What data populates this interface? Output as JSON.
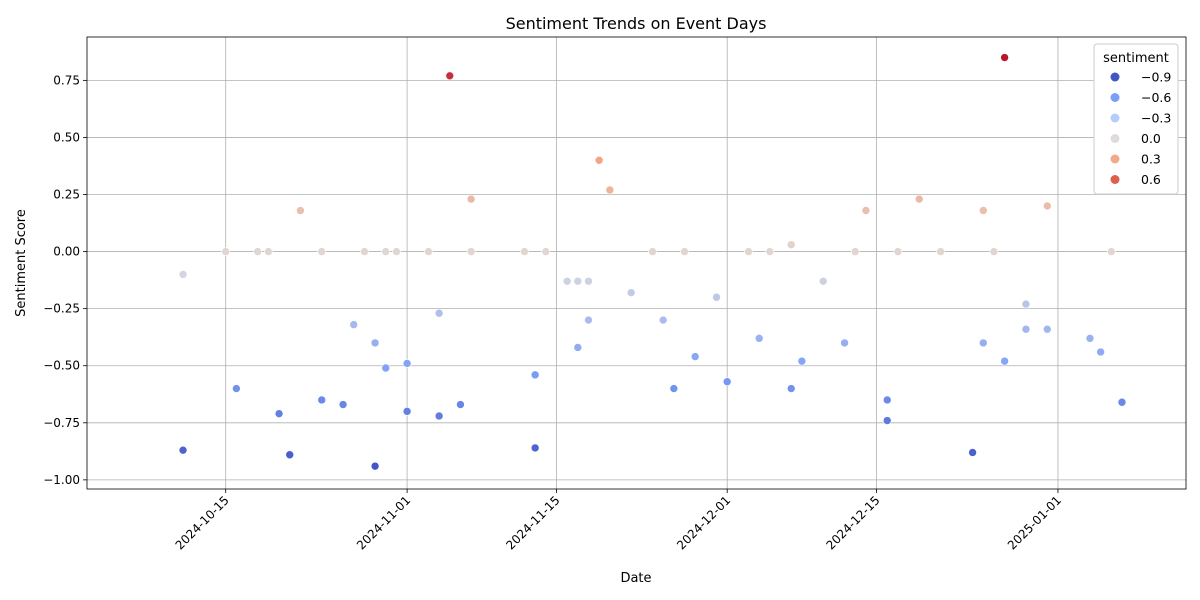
{
  "chart_data": {
    "type": "scatter",
    "title": "Sentiment Trends on Event Days",
    "xlabel": "Date",
    "ylabel": "Sentiment Score",
    "xlim": [
      "2024-10-02",
      "2025-01-13"
    ],
    "ylim": [
      -1.04,
      0.94
    ],
    "x_ticks": [
      "2024-10-15",
      "2024-11-01",
      "2024-11-15",
      "2024-12-01",
      "2024-12-15",
      "2025-01-01"
    ],
    "y_ticks": [
      "-1.00",
      "-0.75",
      "-0.50",
      "-0.25",
      "0.00",
      "0.25",
      "0.50",
      "0.75"
    ],
    "grid": true,
    "hue": "sentiment",
    "legend": {
      "title": "sentiment",
      "location": "top-right",
      "entries": [
        {
          "label": "−0.9",
          "value": -0.9,
          "color": "#4055c8"
        },
        {
          "label": "−0.6",
          "value": -0.6,
          "color": "#7b9ff9"
        },
        {
          "label": "−0.3",
          "value": -0.3,
          "color": "#b5cdfa"
        },
        {
          "label": "0.0",
          "value": 0.0,
          "color": "#dfdbd9"
        },
        {
          "label": "0.3",
          "value": 0.3,
          "color": "#f2aa8a"
        },
        {
          "label": "0.6",
          "value": 0.6,
          "color": "#dd5f4b"
        }
      ]
    },
    "colormap": {
      "name": "coolwarm",
      "min": -1.0,
      "max": 0.9
    },
    "points": [
      {
        "x": "2024-10-11",
        "y": -0.1
      },
      {
        "x": "2024-10-11",
        "y": -0.87
      },
      {
        "x": "2024-10-15",
        "y": 0.0
      },
      {
        "x": "2024-10-16",
        "y": -0.6
      },
      {
        "x": "2024-10-18",
        "y": 0.0
      },
      {
        "x": "2024-10-19",
        "y": 0.0
      },
      {
        "x": "2024-10-20",
        "y": -0.71
      },
      {
        "x": "2024-10-21",
        "y": -0.89
      },
      {
        "x": "2024-10-22",
        "y": 0.18
      },
      {
        "x": "2024-10-24",
        "y": 0.0
      },
      {
        "x": "2024-10-24",
        "y": -0.65
      },
      {
        "x": "2024-10-26",
        "y": -0.67
      },
      {
        "x": "2024-10-27",
        "y": -0.32
      },
      {
        "x": "2024-10-28",
        "y": 0.0
      },
      {
        "x": "2024-10-29",
        "y": -0.4
      },
      {
        "x": "2024-10-29",
        "y": -0.94
      },
      {
        "x": "2024-10-30",
        "y": 0.0
      },
      {
        "x": "2024-10-30",
        "y": -0.51
      },
      {
        "x": "2024-10-31",
        "y": 0.0
      },
      {
        "x": "2024-11-01",
        "y": -0.49
      },
      {
        "x": "2024-11-01",
        "y": -0.7
      },
      {
        "x": "2024-11-03",
        "y": 0.0
      },
      {
        "x": "2024-11-04",
        "y": -0.27
      },
      {
        "x": "2024-11-04",
        "y": -0.72
      },
      {
        "x": "2024-11-05",
        "y": 0.77
      },
      {
        "x": "2024-11-06",
        "y": -0.67
      },
      {
        "x": "2024-11-07",
        "y": 0.23
      },
      {
        "x": "2024-11-07",
        "y": 0.0
      },
      {
        "x": "2024-11-12",
        "y": 0.0
      },
      {
        "x": "2024-11-13",
        "y": -0.54
      },
      {
        "x": "2024-11-13",
        "y": -0.86
      },
      {
        "x": "2024-11-14",
        "y": 0.0
      },
      {
        "x": "2024-11-16",
        "y": -0.13
      },
      {
        "x": "2024-11-17",
        "y": -0.13
      },
      {
        "x": "2024-11-17",
        "y": -0.42
      },
      {
        "x": "2024-11-18",
        "y": -0.13
      },
      {
        "x": "2024-11-18",
        "y": -0.3
      },
      {
        "x": "2024-11-19",
        "y": 0.4
      },
      {
        "x": "2024-11-20",
        "y": 0.27
      },
      {
        "x": "2024-11-22",
        "y": -0.18
      },
      {
        "x": "2024-11-24",
        "y": 0.0
      },
      {
        "x": "2024-11-25",
        "y": -0.3
      },
      {
        "x": "2024-11-26",
        "y": -0.6
      },
      {
        "x": "2024-11-27",
        "y": 0.0
      },
      {
        "x": "2024-11-28",
        "y": -0.46
      },
      {
        "x": "2024-11-30",
        "y": -0.2
      },
      {
        "x": "2024-12-01",
        "y": -0.57
      },
      {
        "x": "2024-12-03",
        "y": 0.0
      },
      {
        "x": "2024-12-04",
        "y": -0.38
      },
      {
        "x": "2024-12-05",
        "y": 0.0
      },
      {
        "x": "2024-12-07",
        "y": 0.03
      },
      {
        "x": "2024-12-07",
        "y": -0.6
      },
      {
        "x": "2024-12-08",
        "y": -0.48
      },
      {
        "x": "2024-12-10",
        "y": -0.13
      },
      {
        "x": "2024-12-12",
        "y": -0.4
      },
      {
        "x": "2024-12-13",
        "y": 0.0
      },
      {
        "x": "2024-12-14",
        "y": 0.18
      },
      {
        "x": "2024-12-16",
        "y": -0.65
      },
      {
        "x": "2024-12-16",
        "y": -0.74
      },
      {
        "x": "2024-12-17",
        "y": 0.0
      },
      {
        "x": "2024-12-19",
        "y": 0.23
      },
      {
        "x": "2024-12-21",
        "y": 0.0
      },
      {
        "x": "2024-12-24",
        "y": -0.88
      },
      {
        "x": "2024-12-25",
        "y": 0.18
      },
      {
        "x": "2024-12-25",
        "y": -0.4
      },
      {
        "x": "2024-12-26",
        "y": 0.0
      },
      {
        "x": "2024-12-27",
        "y": 0.85
      },
      {
        "x": "2024-12-27",
        "y": -0.48
      },
      {
        "x": "2024-12-29",
        "y": -0.23
      },
      {
        "x": "2024-12-29",
        "y": -0.34
      },
      {
        "x": "2024-12-31",
        "y": 0.2
      },
      {
        "x": "2024-12-31",
        "y": -0.34
      },
      {
        "x": "2025-01-04",
        "y": -0.38
      },
      {
        "x": "2025-01-05",
        "y": -0.44
      },
      {
        "x": "2025-01-06",
        "y": 0.0
      },
      {
        "x": "2025-01-07",
        "y": -0.66
      }
    ]
  }
}
